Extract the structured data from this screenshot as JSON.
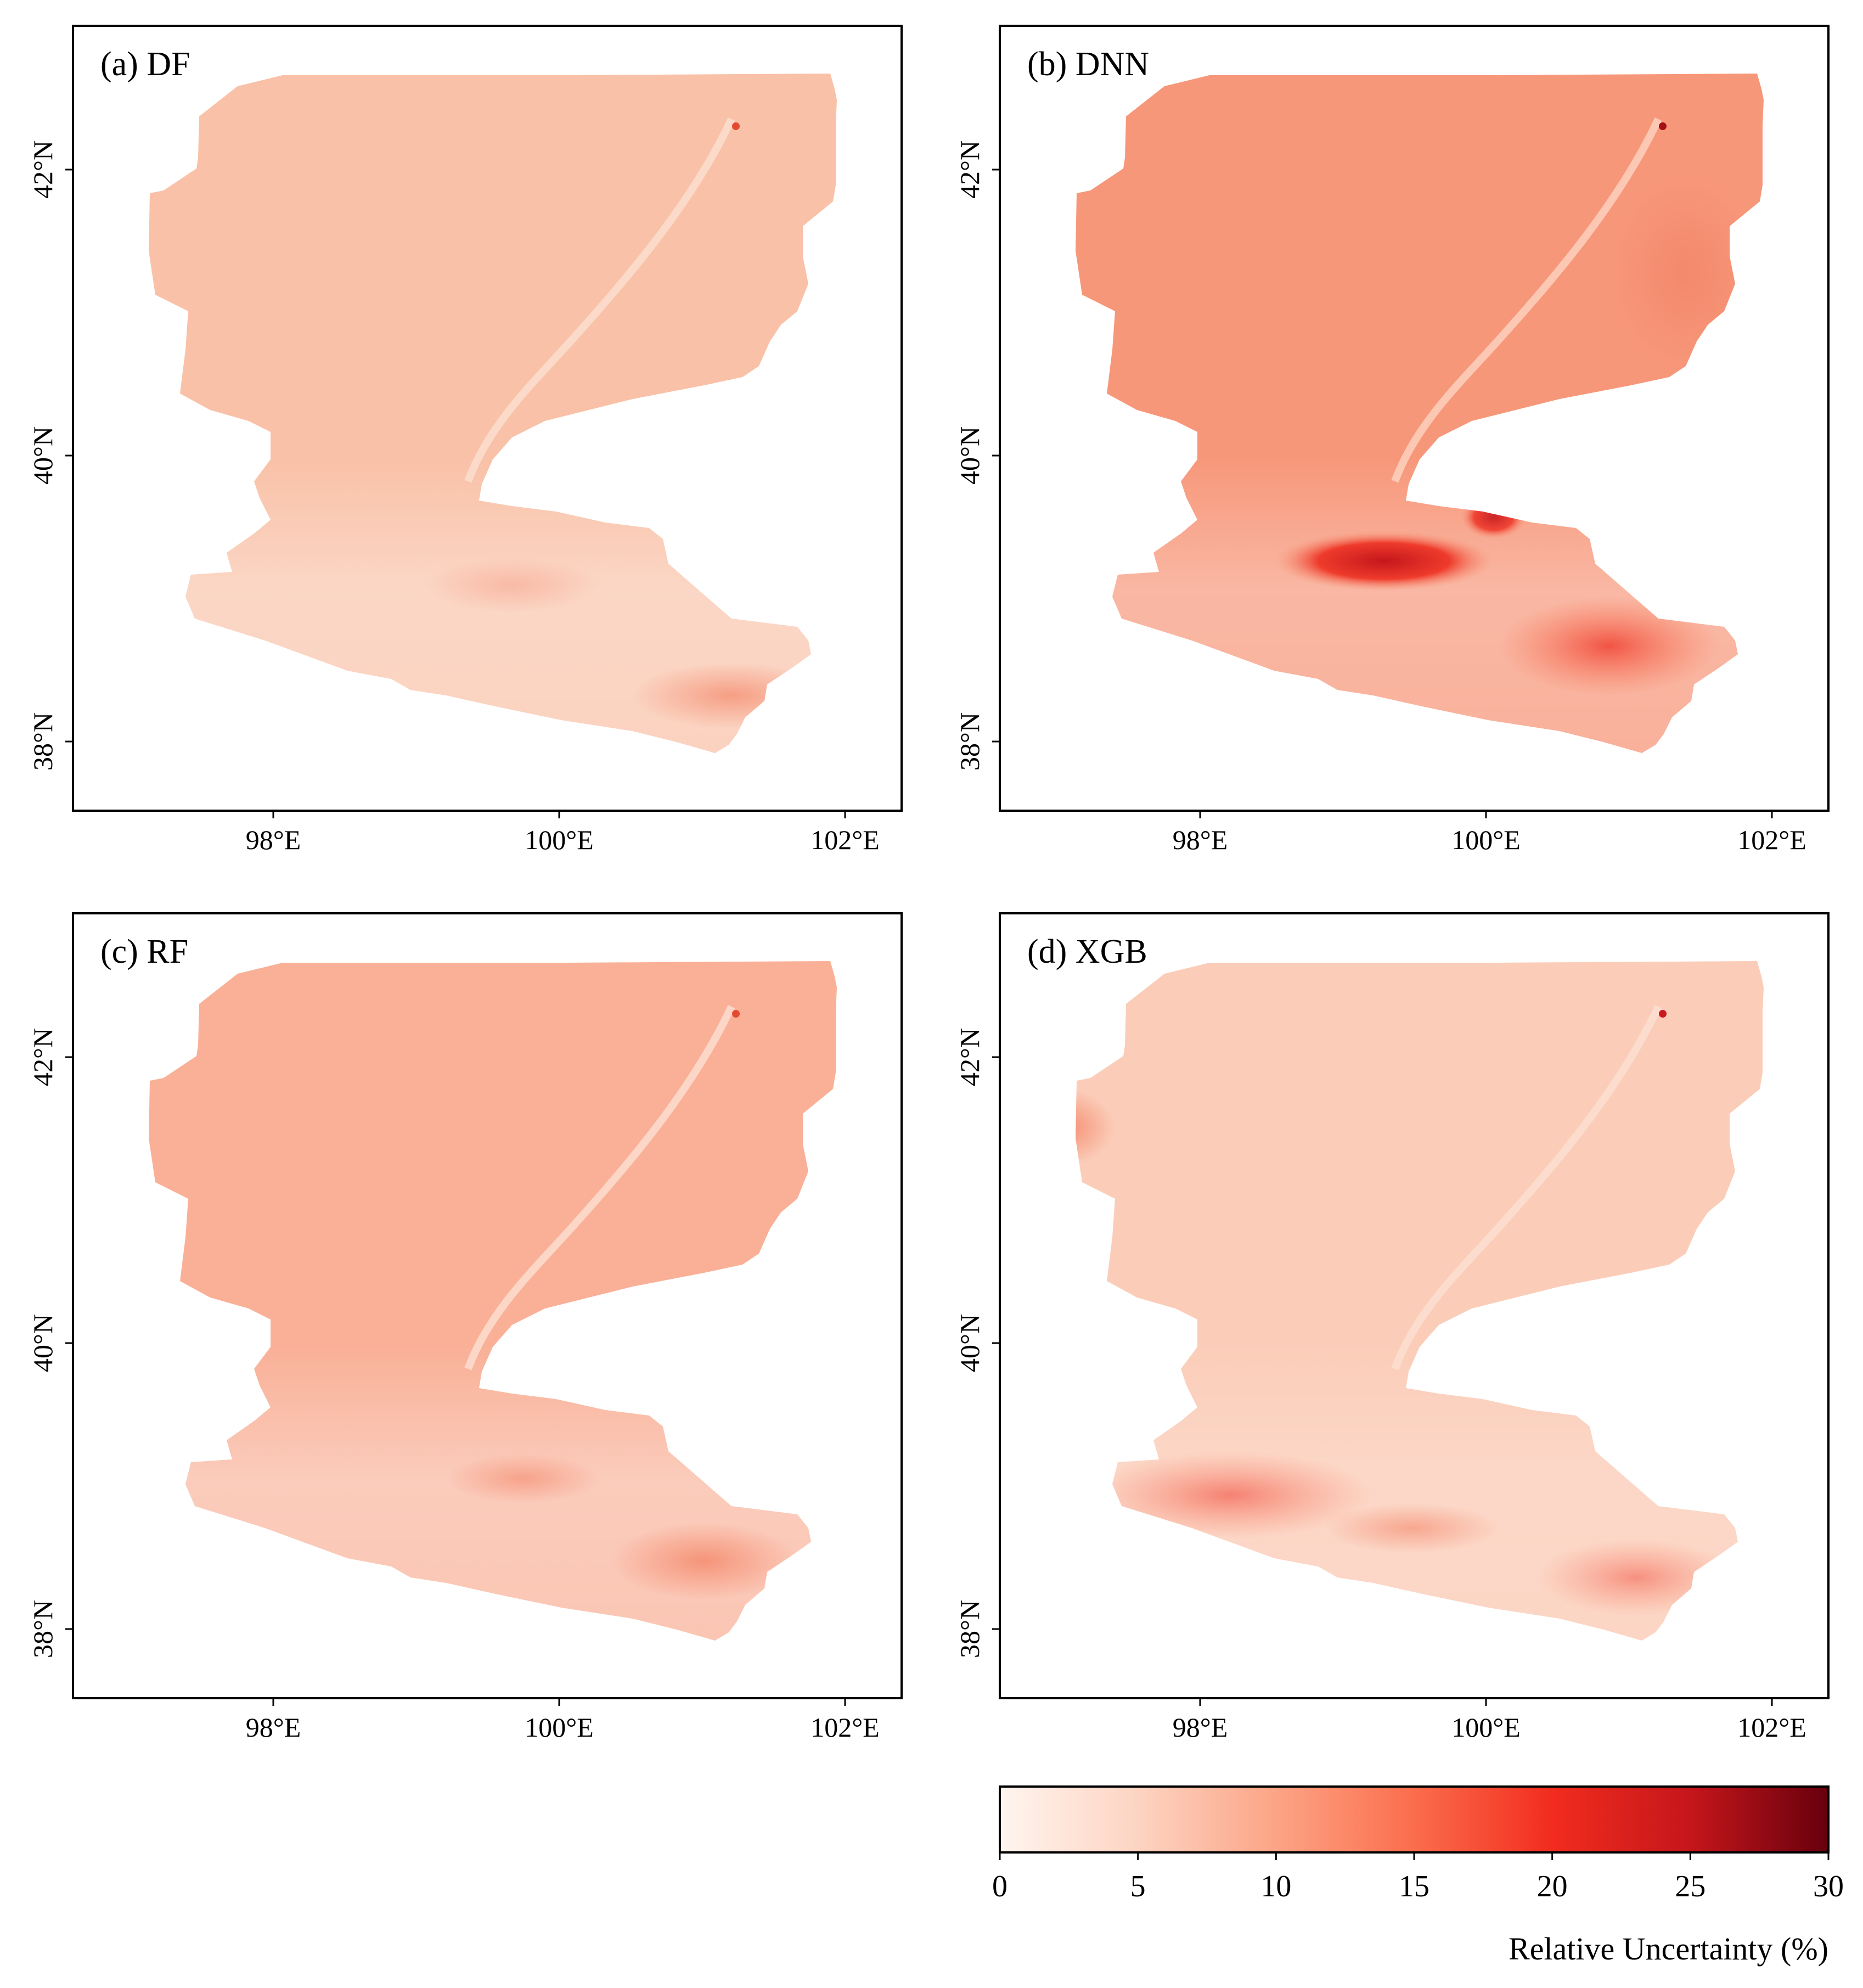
{
  "figure": {
    "panels": [
      {
        "id": "a",
        "label": "(a) DF",
        "model": "DF"
      },
      {
        "id": "b",
        "label": "(b) DNN",
        "model": "DNN"
      },
      {
        "id": "c",
        "label": "(c) RF",
        "model": "RF"
      },
      {
        "id": "d",
        "label": "(d) XGB",
        "model": "XGB"
      }
    ],
    "lat_ticks": [
      "42°N",
      "40°N",
      "38°N"
    ],
    "lon_ticks": [
      "98°E",
      "100°E",
      "102°E"
    ]
  },
  "colorbar": {
    "title": "Relative Uncertainty (%)",
    "ticks": [
      "0",
      "5",
      "10",
      "15",
      "20",
      "25",
      "30"
    ],
    "min": 0,
    "max": 30,
    "colors": [
      "#fff5f0",
      "#fdd4c2",
      "#fca486",
      "#fb6d4c",
      "#f22c1e",
      "#c5161b",
      "#67000d"
    ]
  },
  "colors": {
    "region_df": "#f9c1a7",
    "region_dnn": "#f7977a",
    "region_rf": "#f9b097",
    "region_xgb": "#fbcdb9",
    "frame": "#000000"
  }
}
